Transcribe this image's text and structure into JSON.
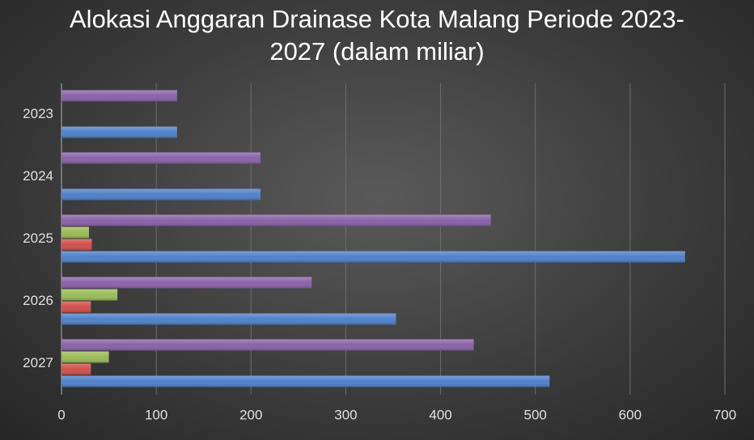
{
  "chart_data": {
    "type": "hbar",
    "title": "Alokasi Anggaran Drainase Kota Malang Periode 2023-2027 (dalam miliar)",
    "categories": [
      "2023",
      "2024",
      "2025",
      "2026",
      "2027"
    ],
    "series": [
      {
        "color": "#4f81c9",
        "values": [
          122,
          210,
          658,
          353,
          515
        ]
      },
      {
        "color": "#d0504c",
        "values": [
          null,
          null,
          32,
          31,
          31
        ]
      },
      {
        "color": "#9bbb59",
        "values": [
          null,
          null,
          29,
          59,
          50
        ]
      },
      {
        "color": "#8a62a8",
        "values": [
          122,
          210,
          453,
          264,
          435
        ]
      }
    ],
    "xlim": [
      0,
      700
    ],
    "xticks": [
      0,
      100,
      200,
      300,
      400,
      500,
      600,
      700
    ],
    "grid": true
  }
}
